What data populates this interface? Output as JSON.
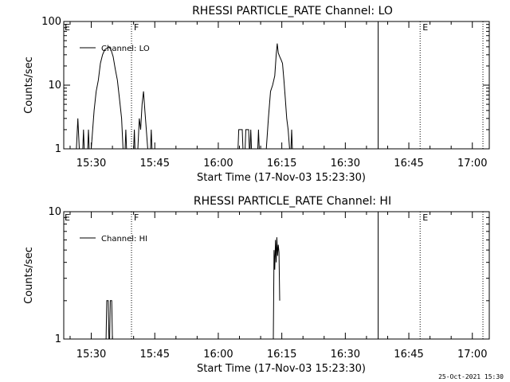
{
  "footer": {
    "date": "25-Oct-2021 15:30"
  },
  "chart_data": [
    {
      "type": "line",
      "title": "RHESSI PARTICLE_RATE Channel: LO",
      "xlabel": "Start Time (17-Nov-03 15:23:30)",
      "ylabel": "Counts/sec",
      "xlim": [
        "15:23:30",
        "17:04:00"
      ],
      "ylim": [
        1,
        100
      ],
      "yscale": "log",
      "xticks": [
        "15:30",
        "15:45",
        "16:00",
        "16:15",
        "16:30",
        "16:45",
        "17:00"
      ],
      "yticks": [
        {
          "value": 1,
          "label": "1"
        },
        {
          "value": 10,
          "label": "10"
        },
        {
          "value": 100,
          "label": "100"
        }
      ],
      "legend": {
        "label": "Channel: LO",
        "position": "top-left"
      },
      "markers": [
        {
          "time": "15:39:30",
          "label": "F",
          "style": "dotted"
        },
        {
          "time": "16:37:45",
          "label": "",
          "style": "solid"
        },
        {
          "time": "16:47:40",
          "label": "E",
          "style": "dotted"
        },
        {
          "time": "17:02:30",
          "label": "",
          "style": "dotted"
        }
      ],
      "corner_labels": {
        "left": "E"
      },
      "series": [
        {
          "name": "Channel: LO",
          "segments": [
            [
              [
                "15:26:30",
                1
              ],
              [
                "15:26:50",
                3
              ],
              [
                "15:27:10",
                1
              ]
            ],
            [
              [
                "15:28:00",
                1
              ],
              [
                "15:28:10",
                2
              ],
              [
                "15:28:20",
                1
              ]
            ],
            [
              [
                "15:29:10",
                1
              ],
              [
                "15:29:20",
                2
              ],
              [
                "15:29:30",
                1
              ]
            ],
            [
              [
                "15:30:00",
                1
              ],
              [
                "15:30:20",
                2
              ],
              [
                "15:30:40",
                4
              ],
              [
                "15:31:10",
                8
              ],
              [
                "15:31:40",
                12
              ],
              [
                "15:32:10",
                22
              ],
              [
                "15:32:40",
                30
              ],
              [
                "15:33:10",
                36
              ],
              [
                "15:33:40",
                38
              ],
              [
                "15:34:10",
                40
              ],
              [
                "15:34:40",
                36
              ],
              [
                "15:35:10",
                28
              ],
              [
                "15:35:40",
                18
              ],
              [
                "15:36:10",
                12
              ],
              [
                "15:36:40",
                6
              ],
              [
                "15:37:10",
                3
              ],
              [
                "15:37:30",
                1
              ]
            ],
            [
              [
                "15:38:00",
                1
              ],
              [
                "15:38:10",
                2
              ],
              [
                "15:38:20",
                1
              ]
            ],
            [
              [
                "15:40:00",
                1
              ],
              [
                "15:40:10",
                2
              ],
              [
                "15:40:20",
                1
              ]
            ],
            [
              [
                "15:41:00",
                1
              ],
              [
                "15:41:20",
                3
              ],
              [
                "15:41:40",
                2
              ],
              [
                "15:42:00",
                5
              ],
              [
                "15:42:20",
                8
              ],
              [
                "15:42:40",
                4
              ],
              [
                "15:43:00",
                2
              ],
              [
                "15:43:20",
                1
              ]
            ],
            [
              [
                "15:44:00",
                1
              ],
              [
                "15:44:10",
                2
              ],
              [
                "15:44:20",
                1
              ]
            ],
            [
              [
                "16:04:40",
                1
              ],
              [
                "16:04:50",
                2
              ],
              [
                "16:05:40",
                2
              ],
              [
                "16:05:50",
                1
              ]
            ],
            [
              [
                "16:06:20",
                1
              ],
              [
                "16:06:30",
                2
              ],
              [
                "16:07:10",
                2
              ],
              [
                "16:07:20",
                1
              ]
            ],
            [
              [
                "16:07:30",
                1
              ],
              [
                "16:07:40",
                2
              ],
              [
                "16:07:50",
                1
              ]
            ],
            [
              [
                "16:09:20",
                1
              ],
              [
                "16:09:30",
                2
              ],
              [
                "16:09:40",
                1
              ]
            ],
            [
              [
                "16:11:20",
                1
              ],
              [
                "16:11:50",
                3
              ],
              [
                "16:12:20",
                8
              ],
              [
                "16:12:50",
                10
              ],
              [
                "16:13:20",
                14
              ],
              [
                "16:13:40",
                30
              ],
              [
                "16:13:55",
                45
              ],
              [
                "16:14:10",
                32
              ],
              [
                "16:14:30",
                28
              ],
              [
                "16:14:50",
                25
              ],
              [
                "16:15:10",
                22
              ],
              [
                "16:15:30",
                12
              ],
              [
                "16:15:50",
                6
              ],
              [
                "16:16:10",
                3
              ],
              [
                "16:16:30",
                2
              ],
              [
                "16:16:50",
                1
              ]
            ],
            [
              [
                "16:17:10",
                1
              ],
              [
                "16:17:20",
                2
              ],
              [
                "16:17:30",
                1
              ]
            ]
          ]
        }
      ]
    },
    {
      "type": "line",
      "title": "RHESSI PARTICLE_RATE Channel: HI",
      "xlabel": "Start Time (17-Nov-03 15:23:30)",
      "ylabel": "Counts/sec",
      "xlim": [
        "15:23:30",
        "17:04:00"
      ],
      "ylim": [
        1,
        10
      ],
      "yscale": "log",
      "xticks": [
        "15:30",
        "15:45",
        "16:00",
        "16:15",
        "16:30",
        "16:45",
        "17:00"
      ],
      "yticks": [
        {
          "value": 1,
          "label": "1"
        },
        {
          "value": 10,
          "label": "10"
        }
      ],
      "legend": {
        "label": "Channel: HI",
        "position": "top-left"
      },
      "markers": [
        {
          "time": "15:39:30",
          "label": "F",
          "style": "dotted"
        },
        {
          "time": "16:37:45",
          "label": "",
          "style": "solid"
        },
        {
          "time": "16:47:40",
          "label": "E",
          "style": "dotted"
        },
        {
          "time": "17:02:30",
          "label": "",
          "style": "dotted"
        }
      ],
      "corner_labels": {
        "left": "E"
      },
      "series": [
        {
          "name": "Channel: HI",
          "segments": [
            [
              [
                "15:33:30",
                1
              ],
              [
                "15:33:40",
                2
              ],
              [
                "15:34:00",
                2
              ],
              [
                "15:34:10",
                1
              ]
            ],
            [
              [
                "15:34:20",
                1
              ],
              [
                "15:34:30",
                2
              ],
              [
                "15:34:50",
                2
              ],
              [
                "15:35:00",
                1
              ]
            ],
            [
              [
                "16:13:00",
                1
              ],
              [
                "16:13:10",
                5
              ],
              [
                "16:13:20",
                3.5
              ],
              [
                "16:13:30",
                6
              ],
              [
                "16:13:40",
                4
              ],
              [
                "16:13:50",
                6.3
              ],
              [
                "16:14:00",
                4.5
              ],
              [
                "16:14:10",
                5.5
              ],
              [
                "16:14:20",
                4.8
              ],
              [
                "16:14:30",
                2
              ]
            ]
          ]
        }
      ]
    }
  ]
}
